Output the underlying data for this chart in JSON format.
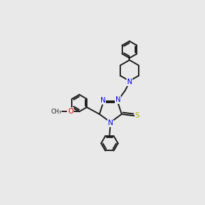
{
  "background_color": "#e9e9e9",
  "bond_color": "#1a1a1a",
  "nitrogen_color": "#0000ee",
  "oxygen_color": "#dd0000",
  "sulfur_color": "#aaaa00",
  "line_width": 1.4,
  "figsize": [
    3.0,
    3.0
  ],
  "dpi": 100,
  "xlim": [
    0,
    10
  ],
  "ylim": [
    0,
    10
  ]
}
